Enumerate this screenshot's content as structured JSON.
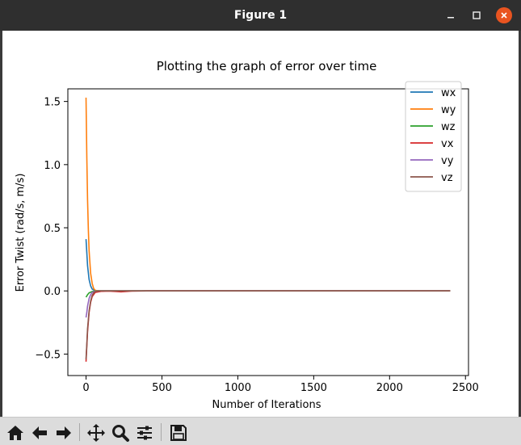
{
  "window": {
    "title": "Figure 1"
  },
  "toolbar": {
    "buttons": [
      {
        "name": "home-icon"
      },
      {
        "name": "back-arrow-icon"
      },
      {
        "name": "forward-arrow-icon"
      },
      {
        "name": "pan-icon"
      },
      {
        "name": "zoom-icon"
      },
      {
        "name": "configure-subplots-icon"
      },
      {
        "name": "save-icon"
      }
    ]
  },
  "chart_data": {
    "type": "line",
    "title": "Plotting the graph of error over time",
    "xlabel": "Number of Iterations",
    "ylabel": "Error Twist (rad/s, m/s)",
    "xlim": [
      -120,
      2520
    ],
    "ylim": [
      -0.67,
      1.6
    ],
    "xticks": [
      0,
      500,
      1000,
      1500,
      2000,
      2500
    ],
    "xtick_labels": [
      "0",
      "500",
      "1000",
      "1500",
      "2000",
      "2500"
    ],
    "yticks": [
      -0.5,
      0.0,
      0.5,
      1.0,
      1.5
    ],
    "ytick_labels": [
      "−0.5",
      "0.0",
      "0.5",
      "1.0",
      "1.5"
    ],
    "legend_position": "top-right",
    "grid": false,
    "series": [
      {
        "name": "wx",
        "color": "#1f77b4",
        "x": [
          0,
          5,
          10,
          20,
          30,
          40,
          60,
          100,
          300,
          800,
          1500,
          2400
        ],
        "y": [
          0.41,
          0.3,
          0.2,
          0.09,
          0.04,
          0.015,
          0.002,
          0,
          0,
          0,
          0,
          0
        ]
      },
      {
        "name": "wy",
        "color": "#ff7f0e",
        "x": [
          0,
          5,
          10,
          15,
          20,
          30,
          40,
          50,
          60,
          80,
          120,
          300,
          1500,
          2400
        ],
        "y": [
          1.53,
          1.05,
          0.72,
          0.48,
          0.32,
          0.14,
          0.06,
          0.02,
          0.005,
          0,
          0,
          0,
          0,
          0
        ]
      },
      {
        "name": "wz",
        "color": "#2ca02c",
        "x": [
          0,
          10,
          20,
          40,
          60,
          100,
          2400
        ],
        "y": [
          -0.05,
          -0.03,
          -0.015,
          -0.005,
          0,
          0,
          0
        ]
      },
      {
        "name": "vx",
        "color": "#d62728",
        "x": [
          0,
          10,
          20,
          30,
          40,
          60,
          100,
          150,
          200,
          230,
          260,
          300,
          400,
          1500,
          2400
        ],
        "y": [
          -0.56,
          -0.32,
          -0.17,
          -0.09,
          -0.045,
          -0.012,
          -0.003,
          -0.002,
          -0.005,
          -0.007,
          -0.005,
          -0.002,
          0,
          0,
          0
        ]
      },
      {
        "name": "vy",
        "color": "#9467bd",
        "x": [
          0,
          5,
          10,
          20,
          30,
          40,
          60,
          100,
          2400
        ],
        "y": [
          -0.21,
          -0.17,
          -0.12,
          -0.06,
          -0.03,
          -0.012,
          -0.002,
          0,
          0
        ]
      },
      {
        "name": "vz",
        "color": "#8c564b",
        "x": [
          0,
          5,
          10,
          20,
          30,
          40,
          50,
          60,
          80,
          120,
          2400
        ],
        "y": [
          -0.54,
          -0.42,
          -0.3,
          -0.16,
          -0.08,
          -0.035,
          -0.015,
          -0.005,
          0,
          0,
          0
        ]
      }
    ]
  }
}
